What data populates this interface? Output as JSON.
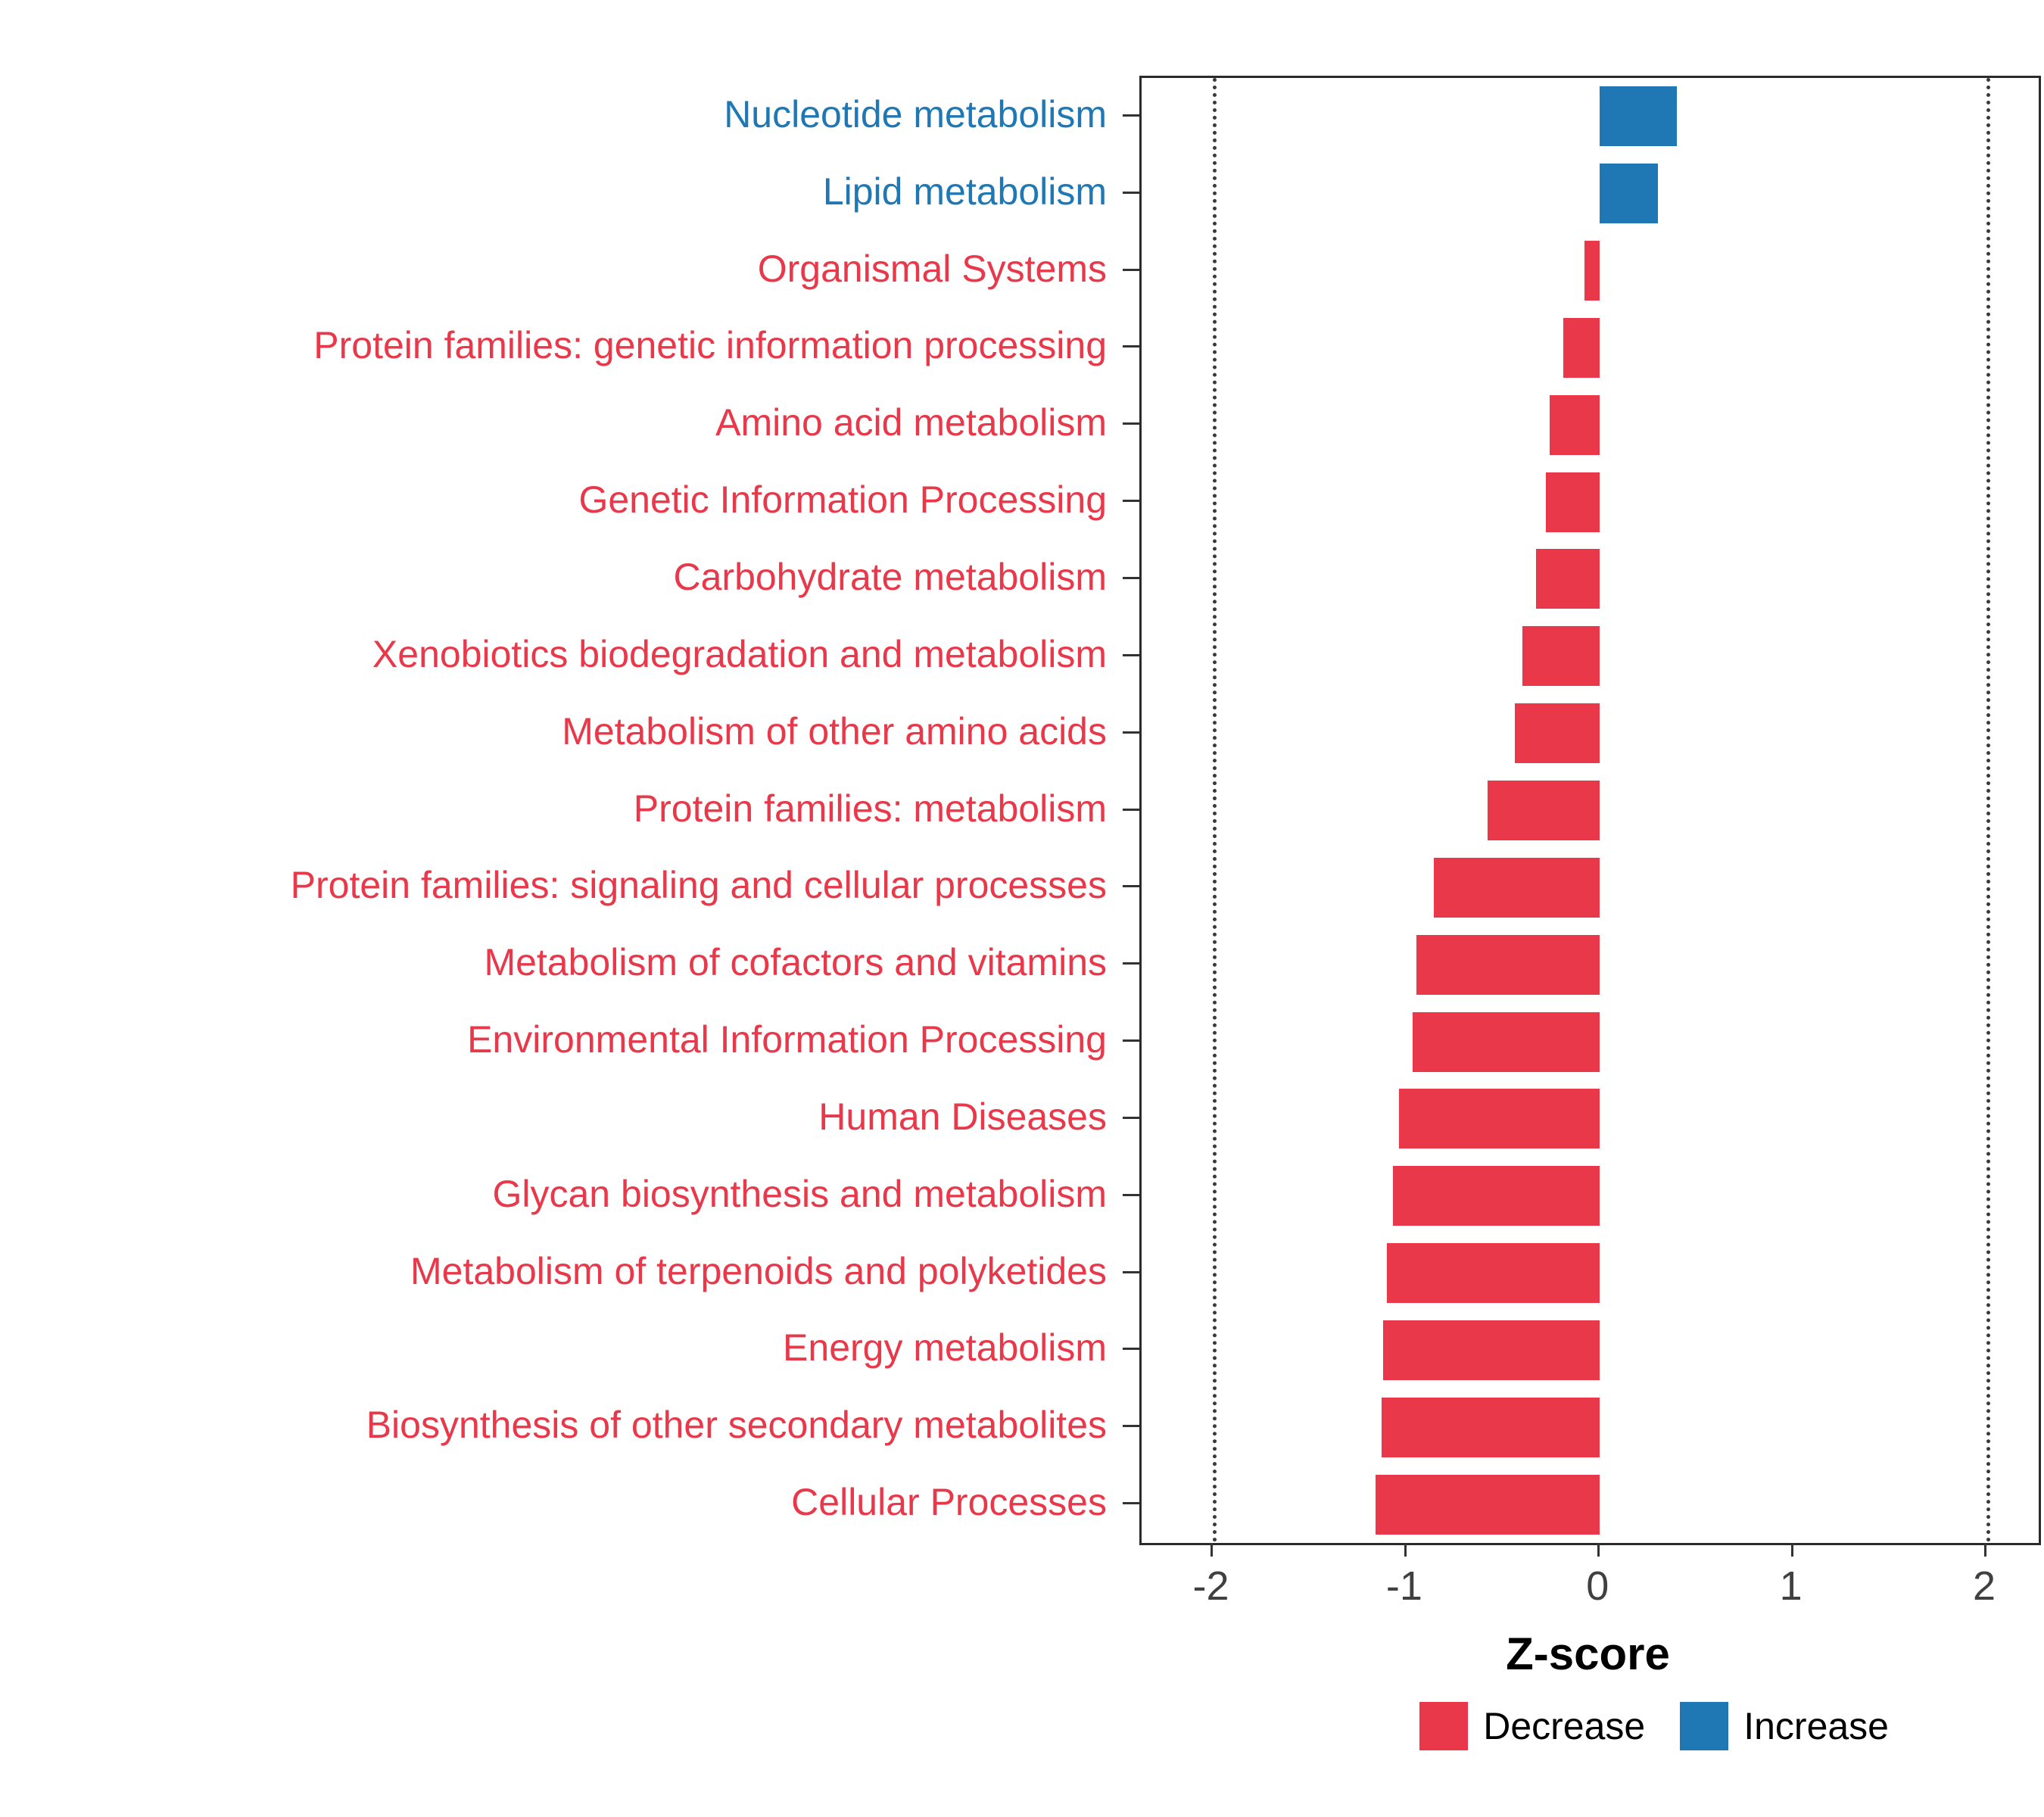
{
  "chart_data": {
    "type": "bar",
    "orientation": "horizontal",
    "title": "",
    "xlabel": "Z-score",
    "ylabel": "",
    "xlim": [
      -2.37,
      2.27
    ],
    "x_ticks": [
      -2,
      -1,
      0,
      1,
      2
    ],
    "reference_lines": [
      -2,
      2
    ],
    "grid": false,
    "legend_position": "bottom-right",
    "colors": {
      "decrease": "#E8384A",
      "increase": "#1F78B4"
    },
    "legend": [
      {
        "label": "Decrease",
        "color_key": "decrease"
      },
      {
        "label": "Increase",
        "color_key": "increase"
      }
    ],
    "categories": [
      "Nucleotide metabolism",
      "Lipid metabolism",
      "Organismal Systems",
      "Protein families: genetic information processing",
      "Amino acid metabolism",
      "Genetic Information Processing",
      "Carbohydrate metabolism",
      "Xenobiotics biodegradation and metabolism",
      "Metabolism of other amino acids",
      "Protein families: metabolism",
      "Protein families: signaling and cellular processes",
      "Metabolism of cofactors and vitamins",
      "Environmental Information Processing",
      "Human Diseases",
      "Glycan biosynthesis and metabolism",
      "Metabolism of terpenoids and polyketides",
      "Energy metabolism",
      "Biosynthesis of other secondary metabolites",
      "Cellular Processes"
    ],
    "values": [
      0.4,
      0.3,
      -0.08,
      -0.19,
      -0.26,
      -0.28,
      -0.33,
      -0.4,
      -0.44,
      -0.58,
      -0.86,
      -0.95,
      -0.97,
      -1.04,
      -1.07,
      -1.1,
      -1.12,
      -1.13,
      -1.16
    ],
    "directions": [
      "increase",
      "increase",
      "decrease",
      "decrease",
      "decrease",
      "decrease",
      "decrease",
      "decrease",
      "decrease",
      "decrease",
      "decrease",
      "decrease",
      "decrease",
      "decrease",
      "decrease",
      "decrease",
      "decrease",
      "decrease",
      "decrease"
    ]
  }
}
